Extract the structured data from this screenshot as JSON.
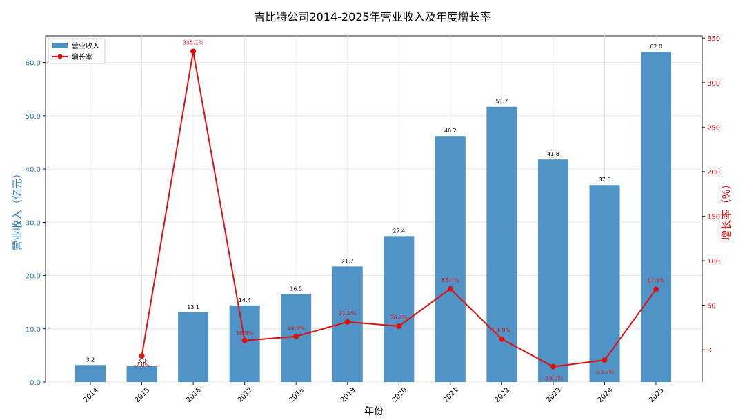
{
  "chart_data": {
    "type": "bar",
    "title": "吉比特公司2014-2025年营业收入及年度增长率",
    "xlabel": "年份",
    "ylabel_left": "营业收入（亿元）",
    "ylabel_right": "增长率（%）",
    "categories": [
      "2014",
      "2015",
      "2016",
      "2017",
      "2018",
      "2019",
      "2020",
      "2021",
      "2022",
      "2023",
      "2024",
      "2025"
    ],
    "series": [
      {
        "name": "营业收入",
        "type": "bar",
        "axis": "left",
        "values": [
          3.2,
          3.0,
          13.1,
          14.4,
          16.5,
          21.7,
          27.4,
          46.2,
          51.7,
          41.8,
          37.0,
          62.0
        ],
        "labels": [
          "3.2",
          "3.0",
          "13.1",
          "14.4",
          "16.5",
          "21.7",
          "27.4",
          "46.2",
          "51.7",
          "41.8",
          "37.0",
          "62.0"
        ]
      },
      {
        "name": "增长率",
        "type": "line",
        "axis": "right",
        "x": [
          "2015",
          "2016",
          "2017",
          "2018",
          "2019",
          "2020",
          "2021",
          "2022",
          "2023",
          "2024",
          "2025"
        ],
        "values": [
          -7.0,
          335.1,
          10.3,
          14.9,
          31.2,
          26.4,
          68.4,
          11.9,
          -19.0,
          -11.7,
          67.9
        ],
        "labels": [
          "-7.0%",
          "335.1%",
          "10.3%",
          "14.9%",
          "31.2%",
          "26.4%",
          "68.4%",
          "11.9%",
          "-19.0%",
          "-11.7%",
          "67.9%"
        ]
      }
    ],
    "ylim_left": [
      0,
      65
    ],
    "yticks_left": [
      "0.0",
      "10.0",
      "20.0",
      "30.0",
      "40.0",
      "50.0",
      "60.0"
    ],
    "ylim_right": [
      -36.35,
      352.5
    ],
    "yticks_right": [
      "0",
      "50",
      "100",
      "150",
      "200",
      "250",
      "300",
      "350"
    ],
    "grid": true,
    "legend_placement": "top-left",
    "colors": {
      "bar": "#4a90c4",
      "line": "#e01010",
      "left_axis": "#2a7fc4",
      "right_axis": "#e01010"
    }
  }
}
